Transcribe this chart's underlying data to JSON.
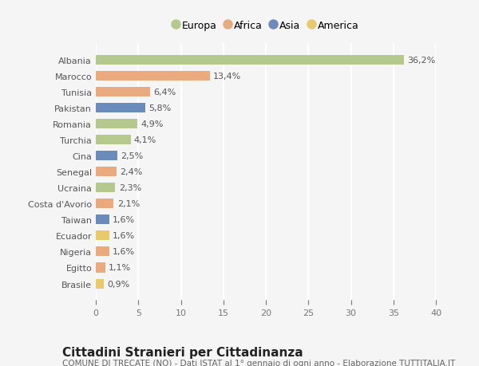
{
  "categories": [
    "Albania",
    "Marocco",
    "Tunisia",
    "Pakistan",
    "Romania",
    "Turchia",
    "Cina",
    "Senegal",
    "Ucraina",
    "Costa d'Avorio",
    "Taiwan",
    "Ecuador",
    "Nigeria",
    "Egitto",
    "Brasile"
  ],
  "values": [
    36.2,
    13.4,
    6.4,
    5.8,
    4.9,
    4.1,
    2.5,
    2.4,
    2.3,
    2.1,
    1.6,
    1.6,
    1.6,
    1.1,
    0.9
  ],
  "labels": [
    "36,2%",
    "13,4%",
    "6,4%",
    "5,8%",
    "4,9%",
    "4,1%",
    "2,5%",
    "2,4%",
    "2,3%",
    "2,1%",
    "1,6%",
    "1,6%",
    "1,6%",
    "1,1%",
    "0,9%"
  ],
  "colors": [
    "#b5c98e",
    "#e8aa7e",
    "#e8aa7e",
    "#6b8cba",
    "#b5c98e",
    "#b5c98e",
    "#6b8cba",
    "#e8aa7e",
    "#b5c98e",
    "#e8aa7e",
    "#6b8cba",
    "#e8c96e",
    "#e8aa7e",
    "#e8aa7e",
    "#e8c96e"
  ],
  "legend_labels": [
    "Europa",
    "Africa",
    "Asia",
    "America"
  ],
  "legend_colors": [
    "#b5c98e",
    "#e8aa7e",
    "#6b8cba",
    "#e8c96e"
  ],
  "title": "Cittadini Stranieri per Cittadinanza",
  "subtitle": "COMUNE DI TRECATE (NO) - Dati ISTAT al 1° gennaio di ogni anno - Elaborazione TUTTITALIA.IT",
  "xlim": [
    0,
    40
  ],
  "xticks": [
    0,
    5,
    10,
    15,
    20,
    25,
    30,
    35,
    40
  ],
  "bg_color": "#f5f5f5",
  "grid_color": "#ffffff",
  "bar_height": 0.6,
  "label_fontsize": 8.0,
  "tick_fontsize": 8.0,
  "title_fontsize": 11,
  "subtitle_fontsize": 7.5
}
